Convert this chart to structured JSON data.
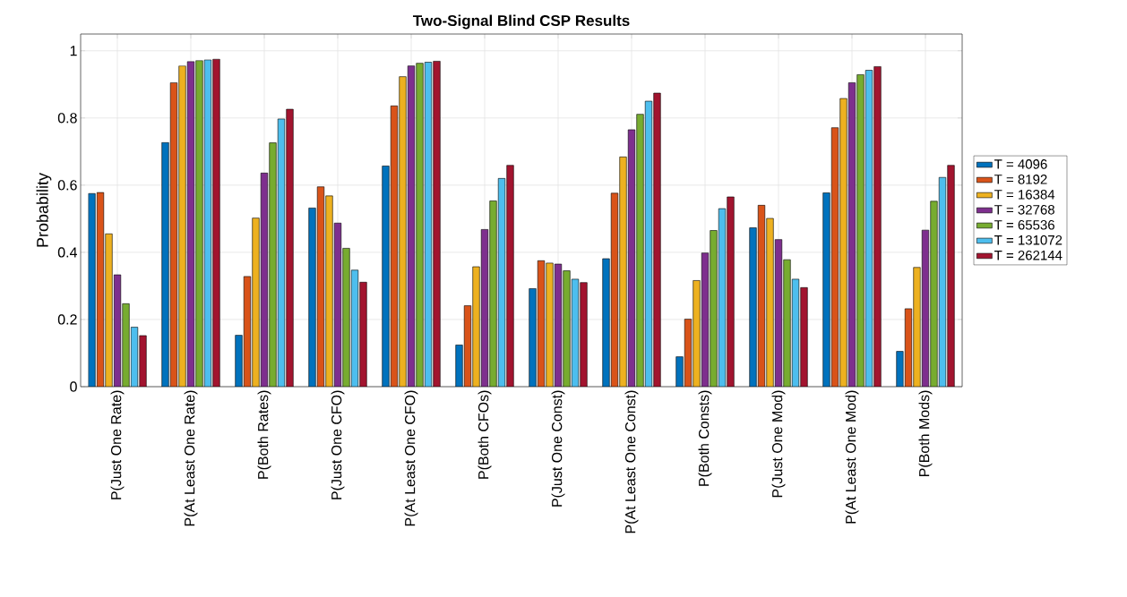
{
  "chart_data": {
    "type": "bar",
    "title": "Two-Signal Blind CSP Results",
    "ylabel": "Probability",
    "categories": [
      "P(Just One Rate)",
      "P(At Least One Rate)",
      "P(Both Rates)",
      "P(Just One CFO)",
      "P(At Least One CFO)",
      "P(Both CFOs)",
      "P(Just One Const)",
      "P(At Least One Const)",
      "P(Both Consts)",
      "P(Just One Mod)",
      "P(At Least One Mod)",
      "P(Both Mods)"
    ],
    "series": [
      {
        "name": "T = 4096",
        "color": "#0072bd",
        "values": [
          0.575,
          0.727,
          0.153,
          0.532,
          0.657,
          0.124,
          0.292,
          0.381,
          0.089,
          0.473,
          0.577,
          0.105
        ]
      },
      {
        "name": "T = 8192",
        "color": "#d95319",
        "values": [
          0.578,
          0.905,
          0.328,
          0.595,
          0.836,
          0.241,
          0.375,
          0.576,
          0.201,
          0.54,
          0.771,
          0.232
        ]
      },
      {
        "name": "T = 16384",
        "color": "#edb120",
        "values": [
          0.455,
          0.955,
          0.502,
          0.568,
          0.923,
          0.357,
          0.368,
          0.684,
          0.316,
          0.501,
          0.858,
          0.355
        ]
      },
      {
        "name": "T = 32768",
        "color": "#7e2f8e",
        "values": [
          0.333,
          0.968,
          0.636,
          0.487,
          0.955,
          0.468,
          0.365,
          0.765,
          0.398,
          0.438,
          0.905,
          0.466
        ]
      },
      {
        "name": "T = 65536",
        "color": "#77ac30",
        "values": [
          0.247,
          0.971,
          0.726,
          0.412,
          0.963,
          0.553,
          0.345,
          0.811,
          0.465,
          0.378,
          0.929,
          0.552
        ]
      },
      {
        "name": "T = 131072",
        "color": "#4dbeee",
        "values": [
          0.177,
          0.973,
          0.797,
          0.347,
          0.966,
          0.62,
          0.32,
          0.85,
          0.53,
          0.32,
          0.942,
          0.623
        ]
      },
      {
        "name": "T = 262144",
        "color": "#a2142f",
        "values": [
          0.152,
          0.975,
          0.826,
          0.311,
          0.969,
          0.659,
          0.31,
          0.874,
          0.565,
          0.295,
          0.953,
          0.659
        ]
      }
    ],
    "ylim": [
      0,
      1.05
    ],
    "yticks": [
      0,
      0.2,
      0.4,
      0.6,
      0.8,
      1
    ],
    "grid": true,
    "legend": "right"
  }
}
